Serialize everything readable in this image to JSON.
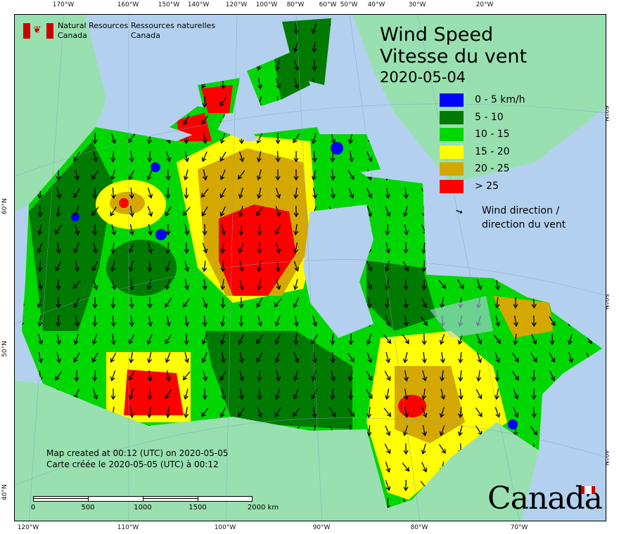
{
  "agency": {
    "en_line1": "Natural Resources",
    "en_line2": "Canada",
    "fr_line1": "Ressources naturelles",
    "fr_line2": "Canada"
  },
  "title": {
    "en": "Wind Speed",
    "fr": "Vitesse du vent",
    "date": "2020-05-04"
  },
  "legend": [
    {
      "label": "0 - 5 km/h",
      "color": "#0000ff"
    },
    {
      "label": "5 - 10",
      "color": "#007a00"
    },
    {
      "label": "10 - 15",
      "color": "#00d600"
    },
    {
      "label": "15 - 20",
      "color": "#ffff00"
    },
    {
      "label": "20 - 25",
      "color": "#d4a800"
    },
    {
      "label": "> 25",
      "color": "#ff0000"
    }
  ],
  "wind_legend": {
    "line1": "Wind direction /",
    "line2": "direction du vent",
    "icon": "arrow-icon"
  },
  "credit": {
    "en": "Map created at 00:12 (UTC) on 2020-05-05",
    "fr": "Carte créée le 2020-05-05 (UTC) à 00:12"
  },
  "scale": {
    "labels": [
      "0",
      "500",
      "1000",
      "1500",
      "2000  km"
    ]
  },
  "wordmark": "Canada",
  "graticule": {
    "top": [
      "170°W",
      "160°W",
      "150°W",
      "140°W",
      "120°W",
      "100°W",
      "80°W",
      "60°W",
      "50°W",
      "40°W",
      "30°W",
      "20°W"
    ],
    "bottom": [
      "120°W",
      "110°W",
      "100°W",
      "90°W",
      "80°W",
      "70°W"
    ],
    "left": [
      "60°N",
      "50°N",
      "40°N"
    ],
    "right": [
      "60°N",
      "50°N",
      "40°N"
    ]
  },
  "colors": {
    "water": "#b3d1ee",
    "foreign_land": "#99e0b0"
  }
}
